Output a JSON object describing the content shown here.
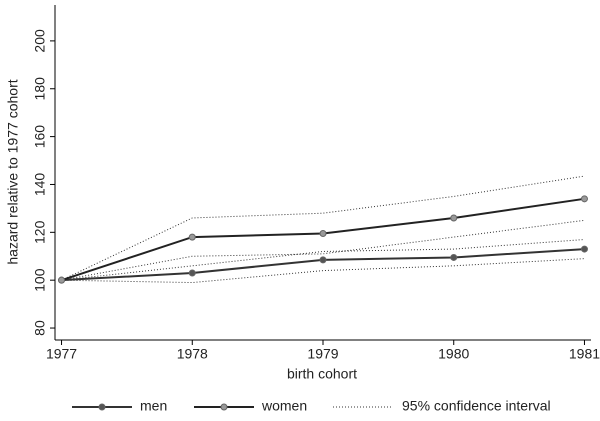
{
  "chart_data": {
    "type": "line",
    "x_label": "birth cohort",
    "y_label": "hazard relative to 1977 cohort",
    "x": [
      1977,
      1978,
      1979,
      1980,
      1981
    ],
    "xlim": [
      1976.95,
      1981.05
    ],
    "xticks": [
      1977,
      1978,
      1979,
      1980,
      1981
    ],
    "ylim": [
      75,
      215
    ],
    "yticks": [
      80,
      100,
      120,
      140,
      160,
      180,
      200
    ],
    "series": [
      {
        "name": "men",
        "color": "#333333",
        "marker_color": "#555555",
        "values": [
          100,
          103,
          108.5,
          109.5,
          113
        ]
      },
      {
        "name": "women",
        "color": "#222222",
        "marker_color": "#999999",
        "values": [
          100,
          118,
          119.5,
          126,
          134
        ]
      }
    ],
    "confidence_interval": {
      "name": "95% confidence interval",
      "color": "#333333",
      "lines": [
        [
          100,
          106,
          112,
          113,
          117
        ],
        [
          100,
          99,
          104,
          106,
          109
        ],
        [
          100,
          126,
          128,
          135,
          143.5
        ],
        [
          100,
          110,
          111,
          118,
          125
        ]
      ]
    }
  }
}
